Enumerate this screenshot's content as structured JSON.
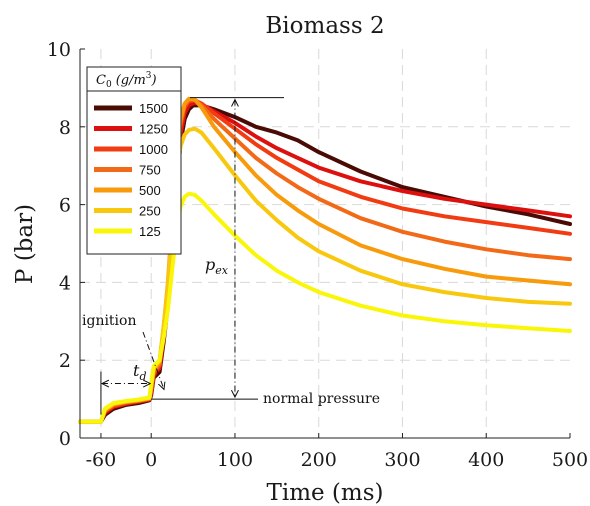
{
  "chart_data": {
    "type": "line",
    "title": "Biomass 2",
    "xlabel": "Time (ms)",
    "ylabel": "P (bar)",
    "xlim": [
      -85,
      500
    ],
    "ylim": [
      0,
      10
    ],
    "x_ticks": [
      -60,
      0,
      100,
      200,
      300,
      400,
      500
    ],
    "x_tick_labels": [
      "-60",
      "0",
      "100",
      "200",
      "300",
      "400",
      "500"
    ],
    "y_ticks": [
      0,
      2,
      4,
      6,
      8,
      10
    ],
    "y_tick_labels": [
      "0",
      "2",
      "4",
      "6",
      "8",
      "10"
    ],
    "grid": true,
    "legend": {
      "title_main": "C",
      "title_sub": "0",
      "title_unit": "(g/m",
      "title_exp": "3",
      "title_close": ")",
      "placement": "top-left"
    },
    "series": [
      {
        "name": "1500",
        "color": "#4a0b05",
        "points": [
          [
            -85,
            0.42
          ],
          [
            -60,
            0.42
          ],
          [
            -55,
            0.6
          ],
          [
            -45,
            0.75
          ],
          [
            -30,
            0.85
          ],
          [
            -15,
            0.9
          ],
          [
            -2,
            0.97
          ],
          [
            0,
            1.1
          ],
          [
            3,
            1.55
          ],
          [
            10,
            1.7
          ],
          [
            15,
            2.5
          ],
          [
            20,
            3.4
          ],
          [
            25,
            4.8
          ],
          [
            30,
            6.3
          ],
          [
            35,
            7.6
          ],
          [
            40,
            8.2
          ],
          [
            45,
            8.45
          ],
          [
            50,
            8.55
          ],
          [
            60,
            8.55
          ],
          [
            75,
            8.45
          ],
          [
            100,
            8.25
          ],
          [
            125,
            8.0
          ],
          [
            150,
            7.85
          ],
          [
            175,
            7.65
          ],
          [
            200,
            7.35
          ],
          [
            250,
            6.85
          ],
          [
            300,
            6.45
          ],
          [
            350,
            6.2
          ],
          [
            400,
            5.95
          ],
          [
            450,
            5.75
          ],
          [
            500,
            5.5
          ]
        ]
      },
      {
        "name": "1250",
        "color": "#dd1010",
        "points": [
          [
            -85,
            0.42
          ],
          [
            -60,
            0.42
          ],
          [
            -55,
            0.65
          ],
          [
            -45,
            0.8
          ],
          [
            -30,
            0.88
          ],
          [
            -15,
            0.93
          ],
          [
            -2,
            0.99
          ],
          [
            0,
            1.15
          ],
          [
            3,
            1.6
          ],
          [
            10,
            1.8
          ],
          [
            15,
            2.6
          ],
          [
            20,
            3.6
          ],
          [
            25,
            5.0
          ],
          [
            30,
            6.6
          ],
          [
            35,
            7.8
          ],
          [
            40,
            8.35
          ],
          [
            45,
            8.55
          ],
          [
            52,
            8.62
          ],
          [
            60,
            8.58
          ],
          [
            75,
            8.4
          ],
          [
            100,
            8.1
          ],
          [
            125,
            7.75
          ],
          [
            150,
            7.45
          ],
          [
            175,
            7.2
          ],
          [
            200,
            6.95
          ],
          [
            250,
            6.6
          ],
          [
            300,
            6.35
          ],
          [
            350,
            6.15
          ],
          [
            400,
            6.0
          ],
          [
            450,
            5.85
          ],
          [
            500,
            5.7
          ]
        ]
      },
      {
        "name": "1000",
        "color": "#f13b12",
        "points": [
          [
            -85,
            0.42
          ],
          [
            -60,
            0.42
          ],
          [
            -55,
            0.68
          ],
          [
            -45,
            0.82
          ],
          [
            -30,
            0.9
          ],
          [
            -15,
            0.95
          ],
          [
            -2,
            1.0
          ],
          [
            0,
            1.2
          ],
          [
            3,
            1.65
          ],
          [
            10,
            1.85
          ],
          [
            15,
            2.7
          ],
          [
            20,
            3.7
          ],
          [
            25,
            5.2
          ],
          [
            30,
            6.8
          ],
          [
            35,
            8.0
          ],
          [
            40,
            8.5
          ],
          [
            45,
            8.65
          ],
          [
            52,
            8.68
          ],
          [
            60,
            8.6
          ],
          [
            75,
            8.35
          ],
          [
            100,
            7.95
          ],
          [
            125,
            7.55
          ],
          [
            150,
            7.2
          ],
          [
            175,
            6.9
          ],
          [
            200,
            6.6
          ],
          [
            250,
            6.2
          ],
          [
            300,
            5.9
          ],
          [
            350,
            5.7
          ],
          [
            400,
            5.55
          ],
          [
            450,
            5.4
          ],
          [
            500,
            5.25
          ]
        ]
      },
      {
        "name": "750",
        "color": "#f26a18",
        "points": [
          [
            -85,
            0.42
          ],
          [
            -60,
            0.42
          ],
          [
            -55,
            0.7
          ],
          [
            -45,
            0.85
          ],
          [
            -30,
            0.92
          ],
          [
            -15,
            0.96
          ],
          [
            -2,
            1.01
          ],
          [
            0,
            1.25
          ],
          [
            3,
            1.7
          ],
          [
            10,
            1.9
          ],
          [
            15,
            2.8
          ],
          [
            20,
            3.9
          ],
          [
            25,
            5.4
          ],
          [
            30,
            7.0
          ],
          [
            35,
            8.1
          ],
          [
            40,
            8.55
          ],
          [
            45,
            8.7
          ],
          [
            52,
            8.7
          ],
          [
            60,
            8.55
          ],
          [
            75,
            8.2
          ],
          [
            100,
            7.7
          ],
          [
            125,
            7.2
          ],
          [
            150,
            6.8
          ],
          [
            175,
            6.45
          ],
          [
            200,
            6.15
          ],
          [
            250,
            5.65
          ],
          [
            300,
            5.3
          ],
          [
            350,
            5.05
          ],
          [
            400,
            4.85
          ],
          [
            450,
            4.7
          ],
          [
            500,
            4.6
          ]
        ]
      },
      {
        "name": "500",
        "color": "#f79b0c",
        "points": [
          [
            -85,
            0.42
          ],
          [
            -60,
            0.42
          ],
          [
            -55,
            0.72
          ],
          [
            -45,
            0.87
          ],
          [
            -30,
            0.93
          ],
          [
            -15,
            0.97
          ],
          [
            -2,
            1.02
          ],
          [
            0,
            1.3
          ],
          [
            3,
            1.75
          ],
          [
            10,
            1.95
          ],
          [
            15,
            2.9
          ],
          [
            20,
            4.0
          ],
          [
            25,
            5.6
          ],
          [
            30,
            7.2
          ],
          [
            35,
            8.2
          ],
          [
            40,
            8.6
          ],
          [
            45,
            8.72
          ],
          [
            52,
            8.7
          ],
          [
            60,
            8.5
          ],
          [
            75,
            8.0
          ],
          [
            100,
            7.35
          ],
          [
            125,
            6.75
          ],
          [
            150,
            6.25
          ],
          [
            175,
            5.85
          ],
          [
            200,
            5.5
          ],
          [
            250,
            4.95
          ],
          [
            300,
            4.6
          ],
          [
            350,
            4.35
          ],
          [
            400,
            4.15
          ],
          [
            450,
            4.05
          ],
          [
            500,
            3.95
          ]
        ]
      },
      {
        "name": "250",
        "color": "#f8c80f",
        "points": [
          [
            -85,
            0.42
          ],
          [
            -60,
            0.42
          ],
          [
            -55,
            0.74
          ],
          [
            -45,
            0.88
          ],
          [
            -30,
            0.94
          ],
          [
            -15,
            0.98
          ],
          [
            -2,
            1.03
          ],
          [
            0,
            1.35
          ],
          [
            3,
            1.8
          ],
          [
            10,
            2.0
          ],
          [
            15,
            2.9
          ],
          [
            20,
            3.9
          ],
          [
            25,
            5.3
          ],
          [
            30,
            6.7
          ],
          [
            35,
            7.5
          ],
          [
            40,
            7.8
          ],
          [
            45,
            7.92
          ],
          [
            52,
            7.95
          ],
          [
            60,
            7.85
          ],
          [
            75,
            7.45
          ],
          [
            100,
            6.75
          ],
          [
            125,
            6.1
          ],
          [
            150,
            5.6
          ],
          [
            175,
            5.15
          ],
          [
            200,
            4.8
          ],
          [
            250,
            4.3
          ],
          [
            300,
            3.95
          ],
          [
            350,
            3.75
          ],
          [
            400,
            3.6
          ],
          [
            450,
            3.5
          ],
          [
            500,
            3.45
          ]
        ]
      },
      {
        "name": "125",
        "color": "#f9f60a",
        "points": [
          [
            -85,
            0.42
          ],
          [
            -60,
            0.42
          ],
          [
            -55,
            0.76
          ],
          [
            -45,
            0.9
          ],
          [
            -30,
            0.95
          ],
          [
            -15,
            0.99
          ],
          [
            -2,
            1.04
          ],
          [
            0,
            1.4
          ],
          [
            3,
            1.85
          ],
          [
            10,
            2.0
          ],
          [
            15,
            2.6
          ],
          [
            20,
            3.3
          ],
          [
            25,
            4.3
          ],
          [
            30,
            5.3
          ],
          [
            35,
            5.95
          ],
          [
            40,
            6.2
          ],
          [
            45,
            6.28
          ],
          [
            52,
            6.25
          ],
          [
            60,
            6.1
          ],
          [
            75,
            5.75
          ],
          [
            100,
            5.2
          ],
          [
            125,
            4.7
          ],
          [
            150,
            4.3
          ],
          [
            175,
            4.0
          ],
          [
            200,
            3.75
          ],
          [
            250,
            3.4
          ],
          [
            300,
            3.15
          ],
          [
            350,
            3.0
          ],
          [
            400,
            2.9
          ],
          [
            450,
            2.82
          ],
          [
            500,
            2.75
          ]
        ]
      }
    ],
    "annotations": {
      "ignition": "ignition",
      "td_main": "t",
      "td_sub": "d",
      "pex_main": "p",
      "pex_sub": "ex",
      "normal_pressure": "normal pressure",
      "td_range_x": [
        -60,
        0
      ],
      "td_y": 1.4,
      "pex_x": 100,
      "pex_top_y": 8.75,
      "normal_pressure_y": 1.0
    }
  }
}
